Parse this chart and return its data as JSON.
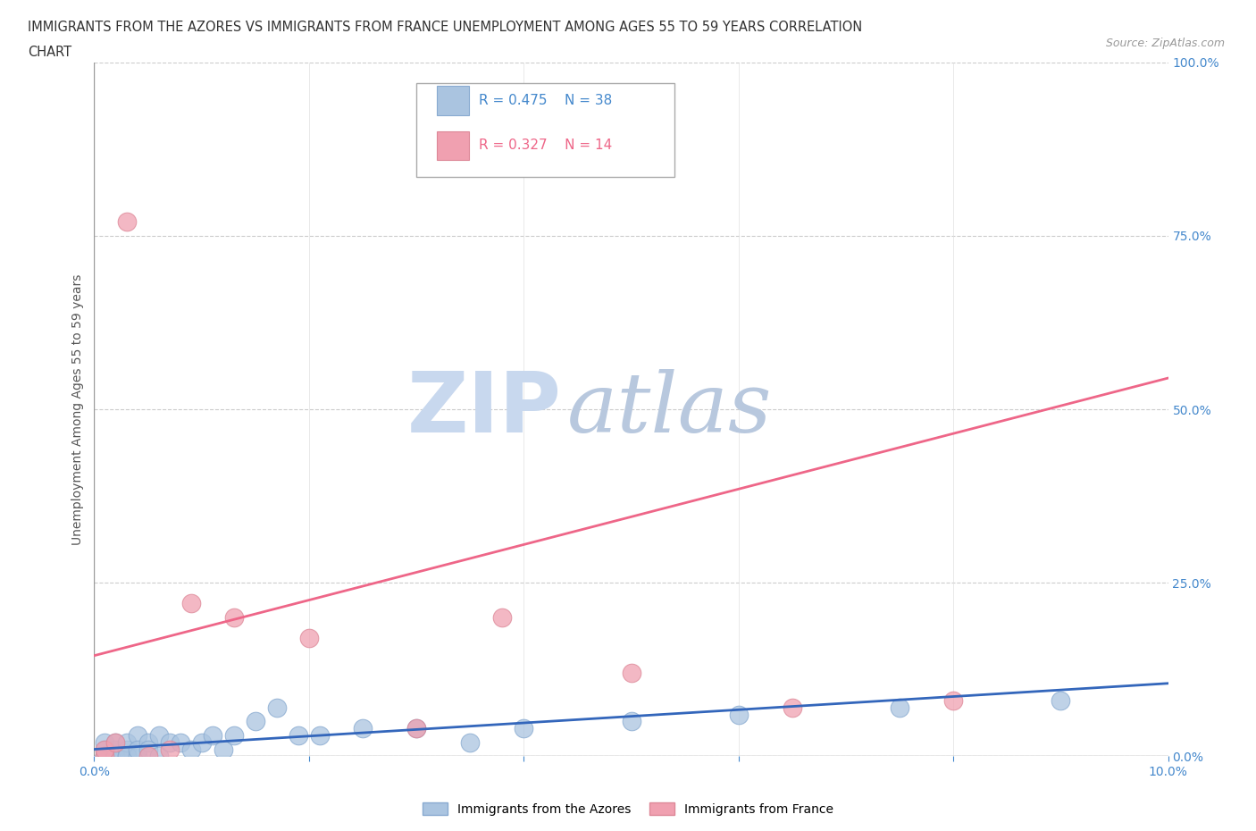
{
  "title_line1": "IMMIGRANTS FROM THE AZORES VS IMMIGRANTS FROM FRANCE UNEMPLOYMENT AMONG AGES 55 TO 59 YEARS CORRELATION",
  "title_line2": "CHART",
  "source_text": "Source: ZipAtlas.com",
  "ylabel": "Unemployment Among Ages 55 to 59 years",
  "xlim": [
    0,
    0.1
  ],
  "ylim": [
    0,
    1.0
  ],
  "xticks": [
    0.0,
    0.02,
    0.04,
    0.06,
    0.08,
    0.1
  ],
  "yticks": [
    0.0,
    0.25,
    0.5,
    0.75,
    1.0
  ],
  "watermark_zip": "ZIP",
  "watermark_atlas": "atlas",
  "watermark_color_zip": "#c8d8ee",
  "watermark_color_atlas": "#c0cce0",
  "background_color": "#ffffff",
  "grid_color": "#cccccc",
  "azores_color": "#aac4e0",
  "france_color": "#f0a0b0",
  "azores_edge_color": "#88aad0",
  "france_edge_color": "#dd8898",
  "azores_line_color": "#3366bb",
  "france_line_color": "#ee6688",
  "legend_R_azores": "R = 0.475",
  "legend_N_azores": "N = 38",
  "legend_R_france": "R = 0.327",
  "legend_N_france": "N = 14",
  "azores_x": [
    0.001,
    0.001,
    0.001,
    0.001,
    0.002,
    0.002,
    0.002,
    0.002,
    0.003,
    0.003,
    0.003,
    0.003,
    0.004,
    0.004,
    0.004,
    0.005,
    0.005,
    0.006,
    0.006,
    0.007,
    0.008,
    0.009,
    0.01,
    0.011,
    0.012,
    0.013,
    0.015,
    0.017,
    0.019,
    0.021,
    0.025,
    0.03,
    0.035,
    0.04,
    0.05,
    0.06,
    0.075,
    0.09
  ],
  "azores_y": [
    0.0,
    0.01,
    0.02,
    0.0,
    0.01,
    0.0,
    0.02,
    0.0,
    0.01,
    0.0,
    0.02,
    0.0,
    0.03,
    0.0,
    0.01,
    0.02,
    0.01,
    0.03,
    0.0,
    0.02,
    0.02,
    0.01,
    0.02,
    0.03,
    0.01,
    0.03,
    0.05,
    0.07,
    0.03,
    0.03,
    0.04,
    0.04,
    0.02,
    0.04,
    0.05,
    0.06,
    0.07,
    0.08
  ],
  "france_x": [
    0.001,
    0.001,
    0.002,
    0.003,
    0.005,
    0.007,
    0.009,
    0.013,
    0.02,
    0.03,
    0.038,
    0.05,
    0.065,
    0.08
  ],
  "france_y": [
    0.0,
    0.01,
    0.02,
    0.77,
    0.0,
    0.01,
    0.22,
    0.2,
    0.17,
    0.04,
    0.2,
    0.12,
    0.07,
    0.08
  ],
  "france_line_x0": 0.0,
  "france_line_y0": 0.145,
  "france_line_x1": 0.1,
  "france_line_y1": 0.545,
  "azores_line_x0": 0.0,
  "azores_line_y0": 0.01,
  "azores_line_x1": 0.1,
  "azores_line_y1": 0.105
}
